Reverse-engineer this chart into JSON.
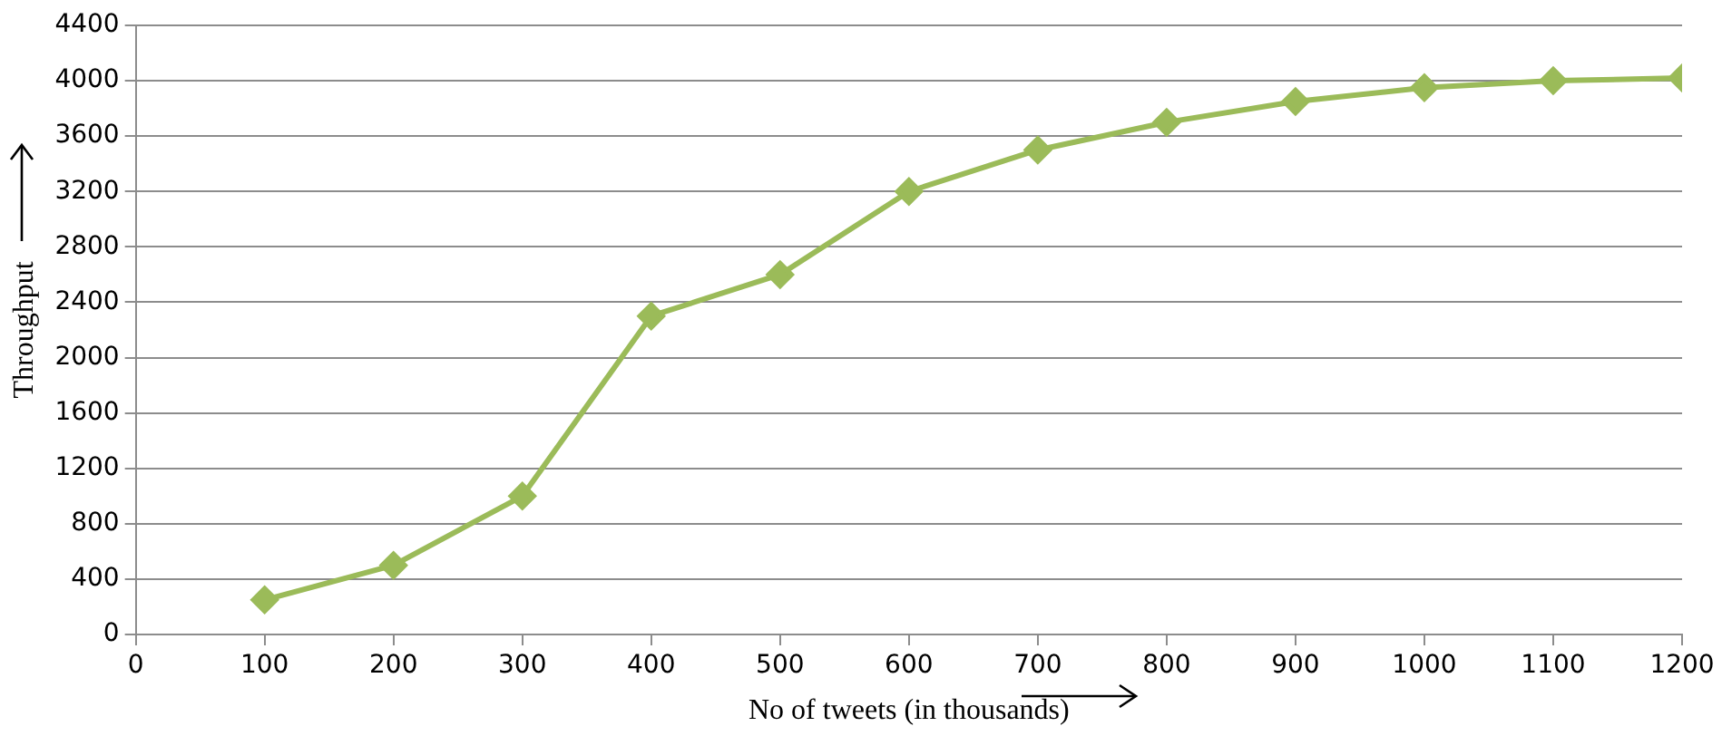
{
  "chart_data": {
    "type": "line",
    "xlabel": "No of tweets (in thousands)",
    "ylabel": "Throughput",
    "x": [
      100,
      200,
      300,
      400,
      500,
      600,
      700,
      800,
      900,
      1000,
      1100,
      1200
    ],
    "series": [
      {
        "color": "#9bbb59",
        "values": [
          250,
          500,
          1000,
          2300,
          2600,
          3200,
          3500,
          3700,
          3850,
          3950,
          4000,
          4020
        ]
      }
    ],
    "xlim": [
      0,
      1200
    ],
    "xticks": [
      0,
      100,
      200,
      300,
      400,
      500,
      600,
      700,
      800,
      900,
      1000,
      1100,
      1200
    ],
    "ylim": [
      0,
      4400
    ],
    "yticks": [
      0,
      400,
      800,
      1200,
      1600,
      2000,
      2400,
      2800,
      3200,
      3600,
      4000,
      4400
    ],
    "grid": "y",
    "legend": false,
    "marker": "diamond",
    "line_style": "solid"
  }
}
